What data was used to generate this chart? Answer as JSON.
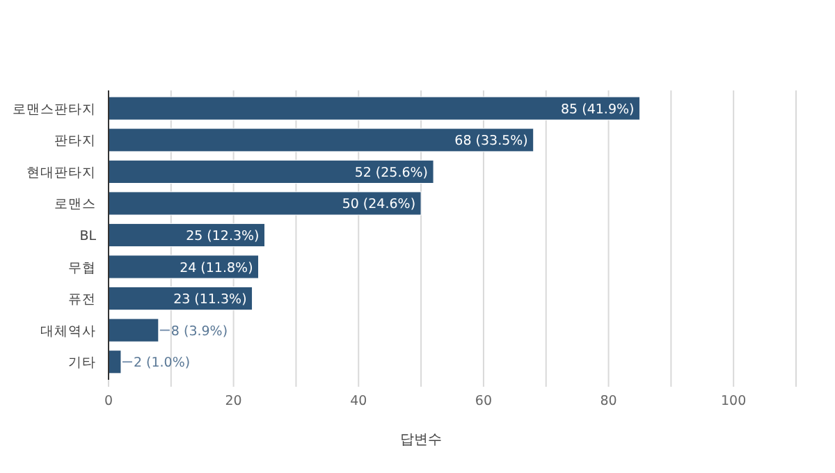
{
  "chart_data": {
    "type": "bar",
    "orientation": "horizontal",
    "xlabel": "답변수",
    "categories": [
      "로맨스판타지",
      "판타지",
      "현대판타지",
      "로맨스",
      "BL",
      "무협",
      "퓨전",
      "대체역사",
      "기타"
    ],
    "values": [
      85,
      68,
      52,
      50,
      25,
      24,
      23,
      8,
      2
    ],
    "value_labels": [
      "85 (41.9%)",
      "68 (33.5%)",
      "52 (25.6%)",
      "50 (24.6%)",
      "25 (12.3%)",
      "24 (11.8%)",
      "23 (11.3%)",
      "8 (3.9%)",
      "2 (1.0%)"
    ],
    "color": "#2c5478",
    "xlim": [
      0,
      110
    ],
    "xticks": [
      0,
      {
        "value": 10,
        "label": null
      },
      20,
      {
        "value": 30,
        "label": null
      },
      40,
      {
        "value": 50,
        "label": null
      },
      60,
      {
        "value": 70,
        "label": null
      },
      80,
      {
        "value": 90,
        "label": null
      },
      100,
      {
        "value": 110,
        "label": null
      }
    ],
    "grid": "x"
  }
}
